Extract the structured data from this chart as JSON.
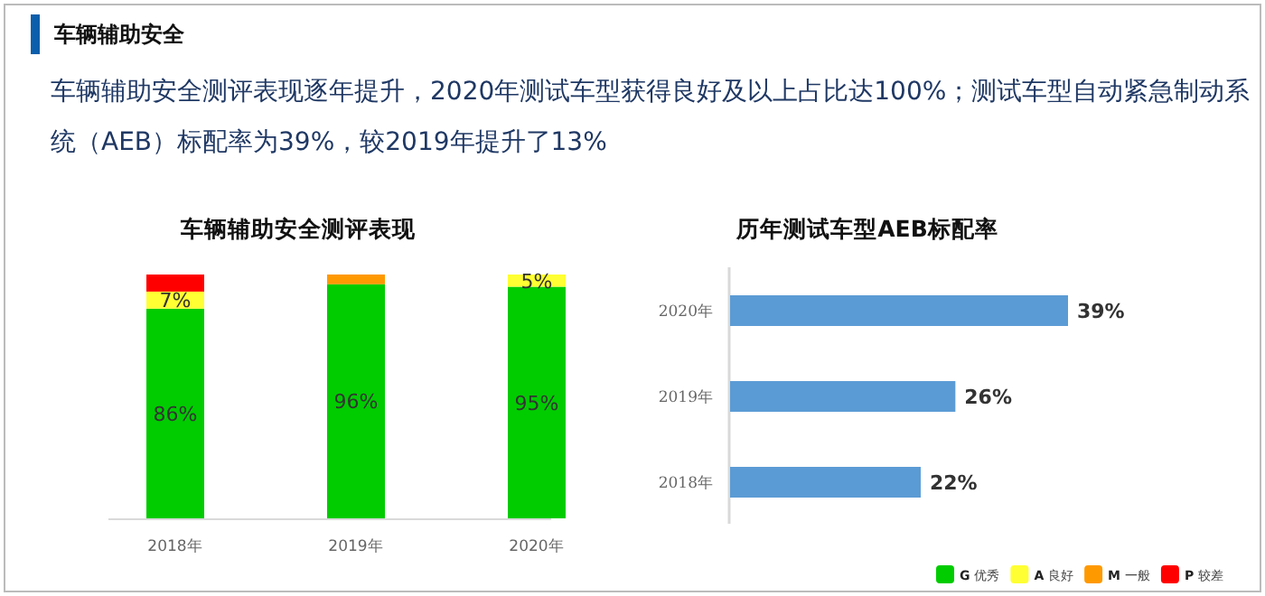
{
  "chart_data": [
    {
      "type": "other",
      "title": "车辆辅助安全",
      "subtitle": "车辆辅助安全测评表现逐年提升，2020年测试车型获得良好及以上占比达100%；测试车型自动紧急制动系统（AEB）标配率为39%，较2019年提升了13%"
    },
    {
      "type": "bar",
      "title": "车辆辅助安全测评表现",
      "stacked": true,
      "legend": "bottom right",
      "tick_labels": "x",
      "categories": [
        "2018年",
        "2019年",
        "2020年"
      ],
      "series": [
        {
          "name": "G 优秀",
          "color": "#00cc00",
          "values": [
            86,
            96,
            95
          ],
          "value_labels": [
            "86%",
            "96%",
            "95%"
          ]
        },
        {
          "name": "A 良好",
          "color": "#ffff33",
          "values": [
            7,
            0,
            5
          ],
          "value_labels": [
            "7%",
            null,
            "5%"
          ]
        },
        {
          "name": "M 一般",
          "color": "#ff9900",
          "values": [
            0,
            4,
            0
          ],
          "value_labels": [
            null,
            null,
            null
          ]
        },
        {
          "name": "P 较差",
          "color": "#ff0000",
          "values": [
            7,
            0,
            0
          ],
          "value_labels": [
            null,
            null,
            null
          ]
        }
      ]
    },
    {
      "type": "bar",
      "title": "历年测试车型AEB标配率",
      "orientation": "horizontal",
      "tick_labels": "y",
      "categories": [
        "2020年",
        "2019年",
        "2018年"
      ],
      "series": [
        {
          "color": "#5b9bd5",
          "values": [
            39,
            26,
            22
          ],
          "value_labels": [
            "39%",
            "26%",
            "22%"
          ]
        }
      ]
    }
  ]
}
